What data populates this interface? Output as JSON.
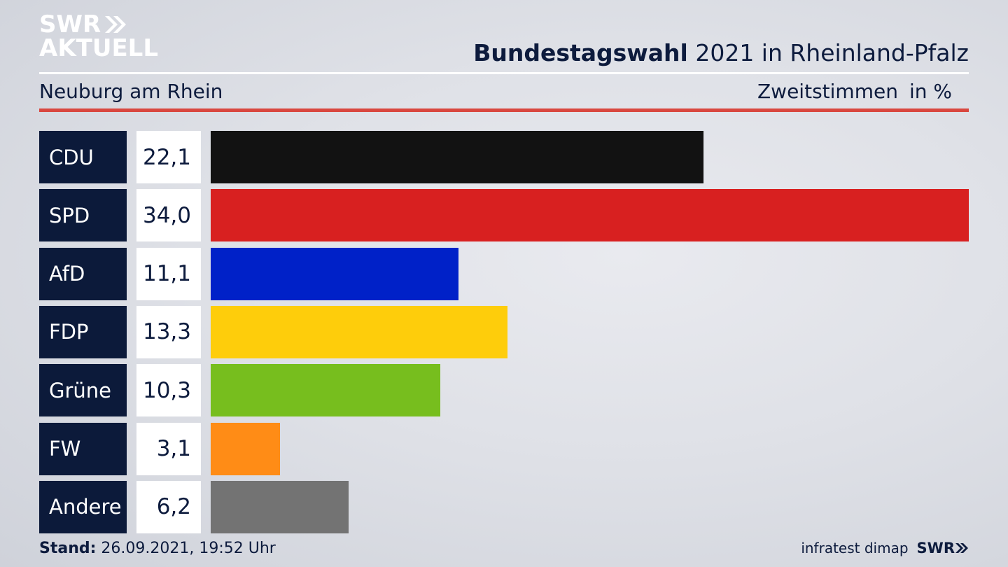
{
  "logo": {
    "line1": "SWR",
    "line2": "AKTUELL"
  },
  "header": {
    "title_bold": "Bundestagswahl",
    "title_rest": " 2021 in Rheinland-Pfalz",
    "region": "Neuburg am Rhein",
    "vote_type": "Zweitstimmen",
    "unit": "in %"
  },
  "chart_data": {
    "type": "bar",
    "categories": [
      "CDU",
      "SPD",
      "AfD",
      "FDP",
      "Grüne",
      "FW",
      "Andere"
    ],
    "values": [
      22.1,
      34.0,
      11.1,
      13.3,
      10.3,
      3.1,
      6.2
    ],
    "value_labels": [
      "22,1",
      "34,0",
      "11,1",
      "13,3",
      "10,3",
      "3,1",
      "6,2"
    ],
    "colors": [
      "#121212",
      "#d82020",
      "#0021c8",
      "#fecd0b",
      "#77be1e",
      "#ff8c16",
      "#737373"
    ],
    "title": "Bundestagswahl 2021 in Rheinland-Pfalz",
    "xlabel": "",
    "ylabel": "",
    "xlim": [
      0,
      34.0
    ],
    "grid": false,
    "legend": "none"
  },
  "footer": {
    "stand_label": "Stand:",
    "stand_value": " 26.09.2021, 19:52 Uhr",
    "source": "infratest dimap",
    "brand": "SWR"
  }
}
